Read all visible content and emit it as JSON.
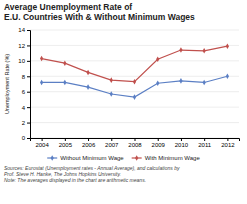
{
  "chart_data": {
    "type": "line",
    "title": "Average Unemployment Rate of\nE.U. Countries With & Without Minimum Wages",
    "ylabel": "Unemployment Rate (%)",
    "x": [
      2004,
      2005,
      2006,
      2007,
      2008,
      2009,
      2010,
      2011,
      2012
    ],
    "series": [
      {
        "name": "Without Minimum Wage",
        "color": "#5b7fc4",
        "values": [
          7.2,
          7.2,
          6.6,
          5.7,
          5.3,
          7.1,
          7.4,
          7.2,
          8.0
        ]
      },
      {
        "name": "With Minimum Wage",
        "color": "#c0504d",
        "values": [
          10.3,
          9.7,
          8.5,
          7.5,
          7.3,
          10.2,
          11.4,
          11.3,
          11.9
        ]
      }
    ],
    "xlim": [
      2003.5,
      2012.5
    ],
    "xticks": [
      2004,
      2005,
      2006,
      2007,
      2008,
      2009,
      2010,
      2011,
      2012
    ],
    "ylim": [
      0,
      14
    ],
    "yticks": [
      0,
      2,
      4,
      6,
      8,
      10,
      12,
      14
    ],
    "grid": "y",
    "legend": "bottom",
    "marker": "diamond",
    "annotations": [
      "Sources: Eurostat (Unemployment rates - Annual Average), and calculations by\nProf. Steve H. Hanke, The Johns Hopkins University.\nNote: The averages displayed in the chart are arithmetic means."
    ]
  }
}
